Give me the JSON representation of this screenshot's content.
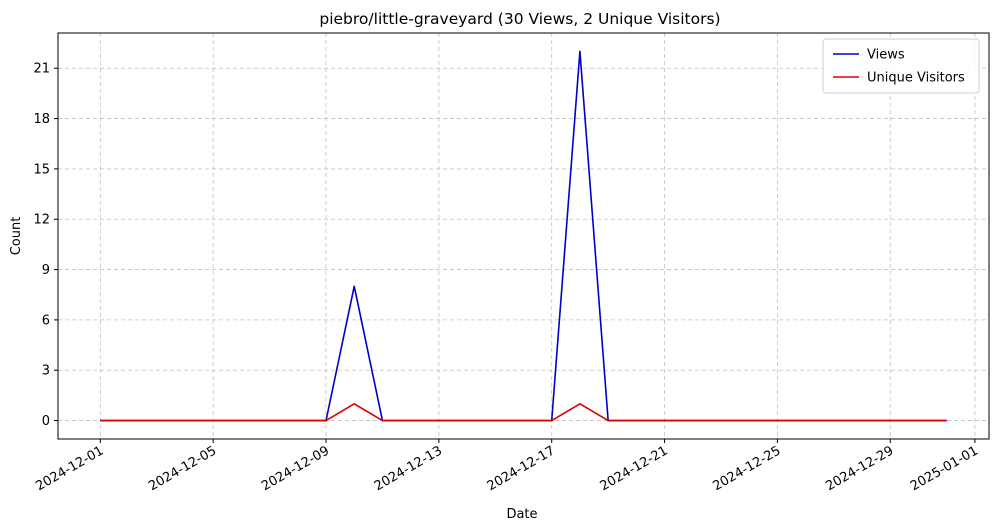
{
  "chart_data": {
    "type": "line",
    "title": "piebro/little-graveyard (30 Views, 2 Unique Visitors)",
    "xlabel": "Date",
    "ylabel": "Count",
    "x": [
      "2024-12-01",
      "2024-12-02",
      "2024-12-03",
      "2024-12-04",
      "2024-12-05",
      "2024-12-06",
      "2024-12-07",
      "2024-12-08",
      "2024-12-09",
      "2024-12-10",
      "2024-12-11",
      "2024-12-12",
      "2024-12-13",
      "2024-12-14",
      "2024-12-15",
      "2024-12-16",
      "2024-12-17",
      "2024-12-18",
      "2024-12-19",
      "2024-12-20",
      "2024-12-21",
      "2024-12-22",
      "2024-12-23",
      "2024-12-24",
      "2024-12-25",
      "2024-12-26",
      "2024-12-27",
      "2024-12-28",
      "2024-12-29",
      "2024-12-30",
      "2024-12-31"
    ],
    "series": [
      {
        "name": "Views",
        "color": "#0000cc",
        "values": [
          0,
          0,
          0,
          0,
          0,
          0,
          0,
          0,
          0,
          8,
          0,
          0,
          0,
          0,
          0,
          0,
          0,
          22,
          0,
          0,
          0,
          0,
          0,
          0,
          0,
          0,
          0,
          0,
          0,
          0,
          0
        ]
      },
      {
        "name": "Unique Visitors",
        "color": "#dd0000",
        "values": [
          0,
          0,
          0,
          0,
          0,
          0,
          0,
          0,
          0,
          1,
          0,
          0,
          0,
          0,
          0,
          0,
          0,
          1,
          0,
          0,
          0,
          0,
          0,
          0,
          0,
          0,
          0,
          0,
          0,
          0,
          0
        ]
      }
    ],
    "xlim": [
      "2024-11-29T12:00",
      "2025-01-01T12:00"
    ],
    "ylim": [
      -1.1,
      23.1
    ],
    "xticks": [
      "2024-12-01",
      "2024-12-05",
      "2024-12-09",
      "2024-12-13",
      "2024-12-17",
      "2024-12-21",
      "2024-12-25",
      "2024-12-29",
      "2025-01-01"
    ],
    "yticks": [
      0,
      3,
      6,
      9,
      12,
      15,
      18,
      21
    ],
    "grid": true,
    "legend_position": "upper right"
  }
}
